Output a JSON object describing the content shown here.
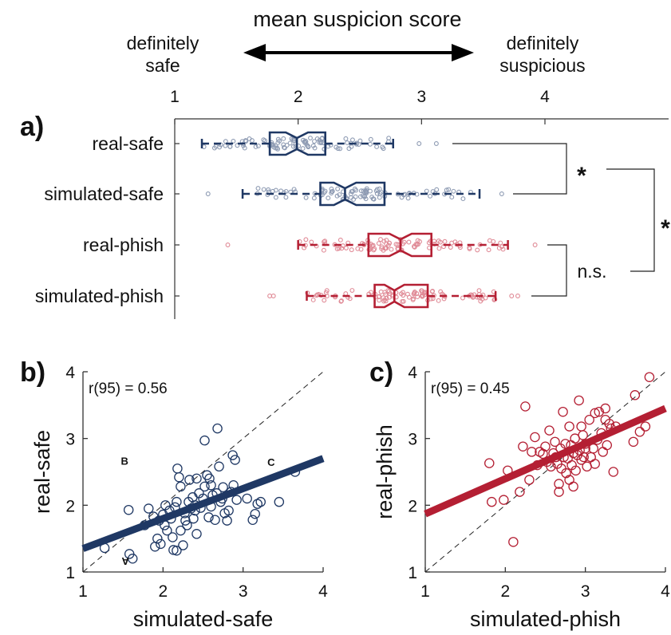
{
  "colors": {
    "safe": "#1f3864",
    "safe_points": "#8e9bb3",
    "phish": "#b41f33",
    "phish_points": "#e08a96",
    "text": "#111111"
  },
  "header": {
    "title": "mean suspicion score",
    "left_label_line1": "definitely",
    "left_label_line2": "safe",
    "right_label_line1": "definitely",
    "right_label_line2": "suspicious"
  },
  "chart_data": [
    {
      "panel": "a)",
      "type": "box",
      "orientation": "horizontal",
      "xlim": [
        1,
        4.5
      ],
      "xticks": [
        "1",
        "2",
        "3",
        "4"
      ],
      "xtick_values": [
        1,
        2,
        3,
        4
      ],
      "groups": [
        {
          "name": "real-safe",
          "color_key": "safe",
          "whisker_low": 1.22,
          "q1": 1.77,
          "median": 1.99,
          "q3": 2.22,
          "whisker_high": 2.77,
          "notch_low": 1.9,
          "notch_high": 2.08,
          "outliers": [
            2.98,
            3.12
          ]
        },
        {
          "name": "simulated-safe",
          "color_key": "safe",
          "whisker_low": 1.55,
          "q1": 2.18,
          "median": 2.38,
          "q3": 2.7,
          "whisker_high": 3.47,
          "notch_low": 2.29,
          "notch_high": 2.47,
          "outliers": [
            1.27,
            3.65
          ]
        },
        {
          "name": "real-phish",
          "color_key": "phish",
          "whisker_low": 2.0,
          "q1": 2.57,
          "median": 2.83,
          "q3": 3.08,
          "whisker_high": 3.7,
          "notch_low": 2.74,
          "notch_high": 2.92,
          "outliers": [
            1.43,
            3.92
          ]
        },
        {
          "name": "simulated-phish",
          "color_key": "phish",
          "whisker_low": 2.07,
          "q1": 2.62,
          "median": 2.78,
          "q3": 3.05,
          "whisker_high": 3.6,
          "notch_low": 2.7,
          "notch_high": 2.86,
          "outliers": [
            1.77,
            1.8,
            3.73,
            3.78
          ]
        }
      ],
      "comparisons": [
        {
          "label": "*",
          "between": [
            "real-safe",
            "simulated-safe"
          ]
        },
        {
          "label": "n.s.",
          "between": [
            "real-phish",
            "simulated-phish"
          ]
        },
        {
          "label": "*",
          "between": [
            "safe",
            "phish"
          ]
        }
      ]
    },
    {
      "panel": "b)",
      "type": "scatter",
      "xlabel": "simulated-safe",
      "ylabel": "real-safe",
      "xlim": [
        1,
        4
      ],
      "ylim": [
        1,
        4
      ],
      "xticks": [
        "1",
        "2",
        "3",
        "4"
      ],
      "yticks": [
        "1",
        "2",
        "3",
        "4"
      ],
      "tick_values": [
        1,
        2,
        3,
        4
      ],
      "annotation": "r(95) = 0.56",
      "point_labels": [
        {
          "text": "B",
          "x": 1.52,
          "y": 2.68
        },
        {
          "text": "C",
          "x": 3.35,
          "y": 2.66
        },
        {
          "text": "A",
          "x": 1.53,
          "y": 1.0
        }
      ],
      "fit_line": [
        [
          1,
          1.35
        ],
        [
          4,
          2.7
        ]
      ],
      "identity_line": [
        [
          1,
          1
        ],
        [
          4,
          4
        ]
      ],
      "color_key": "safe",
      "points": [
        [
          1.27,
          1.36
        ],
        [
          1.57,
          1.93
        ],
        [
          1.62,
          1.2
        ],
        [
          1.58,
          1.27
        ],
        [
          1.77,
          1.7
        ],
        [
          1.82,
          1.95
        ],
        [
          1.88,
          1.83
        ],
        [
          1.93,
          1.5
        ],
        [
          1.97,
          1.42
        ],
        [
          1.9,
          1.38
        ],
        [
          1.95,
          1.77
        ],
        [
          2.0,
          1.86
        ],
        [
          2.02,
          1.7
        ],
        [
          2.05,
          1.62
        ],
        [
          2.03,
          2.0
        ],
        [
          2.08,
          1.92
        ],
        [
          2.1,
          1.8
        ],
        [
          2.12,
          1.52
        ],
        [
          2.13,
          1.33
        ],
        [
          2.17,
          1.32
        ],
        [
          2.17,
          2.05
        ],
        [
          2.18,
          2.55
        ],
        [
          2.2,
          2.42
        ],
        [
          2.22,
          2.28
        ],
        [
          2.22,
          1.62
        ],
        [
          2.25,
          1.4
        ],
        [
          2.27,
          1.88
        ],
        [
          2.28,
          1.77
        ],
        [
          2.3,
          1.7
        ],
        [
          2.32,
          2.05
        ],
        [
          2.33,
          2.38
        ],
        [
          2.35,
          1.95
        ],
        [
          2.37,
          2.12
        ],
        [
          2.38,
          1.8
        ],
        [
          2.4,
          1.92
        ],
        [
          2.4,
          2.0
        ],
        [
          2.42,
          1.57
        ],
        [
          2.45,
          2.18
        ],
        [
          2.47,
          1.96
        ],
        [
          2.5,
          2.1
        ],
        [
          2.52,
          2.28
        ],
        [
          2.52,
          2.97
        ],
        [
          2.55,
          2.45
        ],
        [
          2.57,
          1.82
        ],
        [
          2.58,
          2.4
        ],
        [
          2.6,
          1.98
        ],
        [
          2.62,
          2.15
        ],
        [
          2.65,
          1.78
        ],
        [
          2.67,
          2.18
        ],
        [
          2.68,
          3.15
        ],
        [
          2.7,
          2.58
        ],
        [
          2.72,
          2.05
        ],
        [
          2.74,
          2.1
        ],
        [
          2.75,
          2.27
        ],
        [
          2.77,
          1.88
        ],
        [
          2.8,
          1.77
        ],
        [
          2.82,
          1.92
        ],
        [
          2.85,
          2.2
        ],
        [
          2.87,
          2.75
        ],
        [
          2.88,
          2.3
        ],
        [
          2.9,
          2.68
        ],
        [
          2.92,
          2.08
        ],
        [
          3.05,
          2.1
        ],
        [
          3.12,
          1.78
        ],
        [
          3.15,
          1.87
        ],
        [
          3.18,
          2.02
        ],
        [
          3.22,
          2.05
        ],
        [
          3.45,
          2.05
        ],
        [
          3.65,
          2.5
        ],
        [
          2.42,
          2.4
        ],
        [
          2.15,
          1.97
        ],
        [
          2.6,
          2.3
        ]
      ]
    },
    {
      "panel": "c)",
      "type": "scatter",
      "xlabel": "simulated-phish",
      "ylabel": "real-phish",
      "xlim": [
        1,
        4
      ],
      "ylim": [
        1,
        4
      ],
      "xticks": [
        "1",
        "2",
        "3",
        "4"
      ],
      "yticks": [
        "1",
        "2",
        "3",
        "4"
      ],
      "tick_values": [
        1,
        2,
        3,
        4
      ],
      "annotation": "r(95) = 0.45",
      "fit_line": [
        [
          1,
          1.87
        ],
        [
          4,
          3.45
        ]
      ],
      "identity_line": [
        [
          1,
          1
        ],
        [
          4,
          4
        ]
      ],
      "color_key": "phish",
      "points": [
        [
          1.8,
          2.63
        ],
        [
          1.83,
          2.05
        ],
        [
          1.98,
          2.08
        ],
        [
          2.03,
          2.52
        ],
        [
          2.1,
          1.45
        ],
        [
          2.18,
          2.2
        ],
        [
          2.22,
          2.88
        ],
        [
          2.25,
          3.48
        ],
        [
          2.3,
          2.38
        ],
        [
          2.33,
          2.8
        ],
        [
          2.37,
          3.02
        ],
        [
          2.4,
          2.6
        ],
        [
          2.43,
          2.8
        ],
        [
          2.47,
          2.77
        ],
        [
          2.5,
          2.88
        ],
        [
          2.52,
          2.65
        ],
        [
          2.55,
          3.12
        ],
        [
          2.57,
          2.58
        ],
        [
          2.6,
          2.78
        ],
        [
          2.62,
          2.95
        ],
        [
          2.63,
          2.72
        ],
        [
          2.65,
          2.62
        ],
        [
          2.67,
          2.2
        ],
        [
          2.67,
          2.32
        ],
        [
          2.69,
          2.85
        ],
        [
          2.7,
          2.55
        ],
        [
          2.72,
          3.4
        ],
        [
          2.73,
          2.72
        ],
        [
          2.75,
          2.92
        ],
        [
          2.76,
          2.48
        ],
        [
          2.78,
          2.7
        ],
        [
          2.8,
          3.18
        ],
        [
          2.8,
          2.38
        ],
        [
          2.82,
          2.9
        ],
        [
          2.83,
          2.6
        ],
        [
          2.85,
          2.78
        ],
        [
          2.87,
          3.0
        ],
        [
          2.88,
          2.52
        ],
        [
          2.9,
          2.75
        ],
        [
          2.92,
          3.57
        ],
        [
          2.93,
          2.82
        ],
        [
          2.95,
          2.68
        ],
        [
          2.97,
          3.05
        ],
        [
          2.98,
          2.72
        ],
        [
          3.0,
          2.92
        ],
        [
          3.02,
          2.58
        ],
        [
          3.05,
          3.28
        ],
        [
          3.07,
          2.72
        ],
        [
          3.1,
          2.85
        ],
        [
          3.12,
          2.62
        ],
        [
          3.15,
          2.98
        ],
        [
          3.17,
          3.4
        ],
        [
          3.2,
          3.08
        ],
        [
          3.22,
          2.8
        ],
        [
          3.25,
          3.28
        ],
        [
          3.27,
          2.9
        ],
        [
          3.3,
          3.22
        ],
        [
          3.32,
          3.15
        ],
        [
          3.35,
          2.5
        ],
        [
          3.38,
          3.18
        ],
        [
          3.6,
          2.95
        ],
        [
          3.62,
          3.65
        ],
        [
          3.68,
          3.1
        ],
        [
          3.75,
          3.18
        ],
        [
          3.8,
          3.92
        ],
        [
          2.85,
          2.28
        ],
        [
          2.95,
          3.18
        ],
        [
          3.0,
          2.85
        ],
        [
          3.12,
          3.38
        ],
        [
          3.25,
          3.45
        ]
      ]
    }
  ]
}
